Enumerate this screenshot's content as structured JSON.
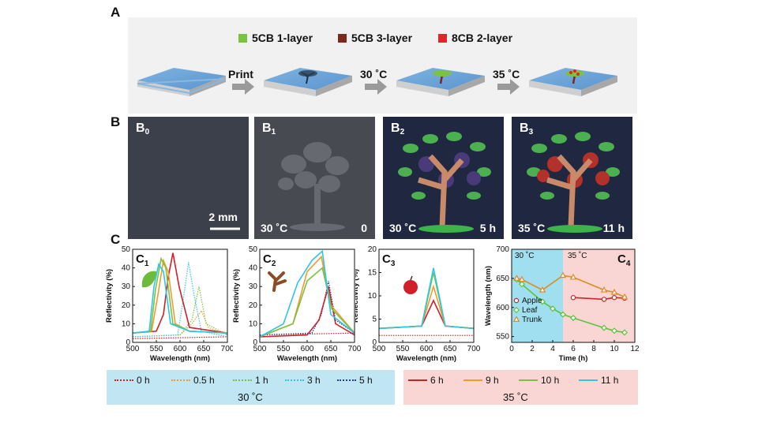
{
  "panels": {
    "A": "A",
    "B": "B",
    "C": "C"
  },
  "panelA": {
    "legend": [
      {
        "label": "5CB 1-layer",
        "color": "#7cc242"
      },
      {
        "label": "5CB 3-layer",
        "color": "#7a2a1c"
      },
      {
        "label": "8CB 2-layer",
        "color": "#e0262b"
      }
    ],
    "steps": [
      "Print",
      "30 ˚C",
      "35 ˚C"
    ]
  },
  "panelB": {
    "photos": [
      {
        "tag": "B",
        "sub": "0",
        "left_text": "",
        "right_text": "",
        "scale": "2 mm"
      },
      {
        "tag": "B",
        "sub": "1",
        "left_text": "30 ˚C",
        "right_text": "0",
        "scale": ""
      },
      {
        "tag": "B",
        "sub": "2",
        "left_text": "30 ˚C",
        "right_text": "5 h",
        "scale": ""
      },
      {
        "tag": "B",
        "sub": "3",
        "left_text": "35 ˚C",
        "right_text": "11 h",
        "scale": ""
      }
    ]
  },
  "legend": {
    "phase1": {
      "title": "30 ˚C",
      "items": [
        {
          "label": "0 h",
          "color": "#d0202a",
          "style": "dotted"
        },
        {
          "label": "0.5 h",
          "color": "#f29a2e",
          "style": "dotted"
        },
        {
          "label": "1 h",
          "color": "#7cc242",
          "style": "dotted"
        },
        {
          "label": "3 h",
          "color": "#2ec5e6",
          "style": "dotted"
        },
        {
          "label": "5 h",
          "color": "#233d8f",
          "style": "dotted"
        }
      ]
    },
    "phase2": {
      "title": "35 ˚C",
      "items": [
        {
          "label": "6 h",
          "color": "#d0202a",
          "style": "solid"
        },
        {
          "label": "9 h",
          "color": "#f29a2e",
          "style": "solid"
        },
        {
          "label": "10 h",
          "color": "#7cc242",
          "style": "solid"
        },
        {
          "label": "11 h",
          "color": "#2ec5e6",
          "style": "solid"
        }
      ]
    }
  },
  "chart_data": [
    {
      "panel": "C1",
      "type": "line",
      "xlabel": "Wavelength (nm)",
      "ylabel": "Reflectivity (%)",
      "xlim": [
        500,
        700
      ],
      "ylim": [
        0,
        50
      ],
      "xticks": [
        500,
        550,
        600,
        650,
        700
      ],
      "yticks": [
        0,
        10,
        20,
        30,
        40,
        50
      ],
      "icon": "leaf",
      "series": [
        {
          "name": "0 h",
          "style": "dotted",
          "color": "#d0202a",
          "x": [
            500,
            700
          ],
          "y": [
            2,
            3
          ]
        },
        {
          "name": "0.5 h",
          "style": "dotted",
          "color": "#f29a2e",
          "x": [
            500,
            600,
            625,
            645,
            660,
            700
          ],
          "y": [
            3,
            4,
            10,
            17,
            8,
            4
          ]
        },
        {
          "name": "1 h",
          "style": "dotted",
          "color": "#7cc242",
          "x": [
            500,
            600,
            625,
            640,
            655,
            700
          ],
          "y": [
            3,
            4,
            12,
            30,
            10,
            4
          ]
        },
        {
          "name": "3 h",
          "style": "dotted",
          "color": "#2ec5e6",
          "x": [
            500,
            595,
            605,
            618,
            630,
            645,
            700
          ],
          "y": [
            3,
            4,
            20,
            43,
            25,
            6,
            3
          ]
        },
        {
          "name": "6 h",
          "style": "solid",
          "color": "#d0202a",
          "x": [
            500,
            550,
            565,
            575,
            585,
            598,
            620,
            700
          ],
          "y": [
            5,
            6,
            15,
            35,
            48,
            30,
            8,
            5
          ]
        },
        {
          "name": "9 h",
          "style": "solid",
          "color": "#f29a2e",
          "x": [
            500,
            540,
            553,
            565,
            575,
            590,
            620,
            700
          ],
          "y": [
            5,
            6,
            25,
            44,
            38,
            10,
            6,
            5
          ]
        },
        {
          "name": "10 h",
          "style": "solid",
          "color": "#7cc242",
          "x": [
            500,
            538,
            548,
            560,
            570,
            585,
            620,
            700
          ],
          "y": [
            5,
            6,
            28,
            45,
            40,
            10,
            6,
            5
          ]
        },
        {
          "name": "11 h",
          "style": "solid",
          "color": "#2ec5e6",
          "x": [
            500,
            535,
            545,
            555,
            565,
            580,
            620,
            700
          ],
          "y": [
            5,
            6,
            30,
            42,
            38,
            10,
            6,
            5
          ]
        }
      ]
    },
    {
      "panel": "C2",
      "type": "line",
      "xlabel": "Wavelength (nm)",
      "ylabel": "Reflectivity (%)",
      "xlim": [
        500,
        700
      ],
      "ylim": [
        0,
        50
      ],
      "xticks": [
        500,
        550,
        600,
        650,
        700
      ],
      "yticks": [
        0,
        10,
        20,
        30,
        40,
        50
      ],
      "icon": "trunk",
      "series": [
        {
          "name": "0 h",
          "style": "dotted",
          "color": "#d0202a",
          "x": [
            500,
            700
          ],
          "y": [
            4,
            5
          ]
        },
        {
          "name": "5 h",
          "style": "dotted",
          "color": "#233d8f",
          "x": [
            500,
            610,
            630,
            645,
            660,
            700
          ],
          "y": [
            4,
            5,
            15,
            33,
            12,
            5
          ]
        },
        {
          "name": "6 h",
          "style": "solid",
          "color": "#d0202a",
          "x": [
            500,
            600,
            625,
            645,
            660,
            700
          ],
          "y": [
            3,
            4,
            12,
            30,
            10,
            4
          ]
        },
        {
          "name": "9 h",
          "style": "solid",
          "color": "#f29a2e",
          "x": [
            500,
            570,
            600,
            630,
            650,
            700
          ],
          "y": [
            3,
            10,
            38,
            46,
            20,
            5
          ]
        },
        {
          "name": "10 h",
          "style": "solid",
          "color": "#7cc242",
          "x": [
            500,
            570,
            600,
            632,
            652,
            700
          ],
          "y": [
            3,
            10,
            33,
            40,
            18,
            5
          ]
        },
        {
          "name": "11 h",
          "style": "solid",
          "color": "#2ec5e6",
          "x": [
            500,
            550,
            580,
            610,
            632,
            650,
            700
          ],
          "y": [
            3,
            10,
            32,
            44,
            49,
            15,
            5
          ]
        }
      ]
    },
    {
      "panel": "C3",
      "type": "line",
      "xlabel": "Wavelength (nm)",
      "ylabel": "Reflectivity (%)",
      "xlim": [
        500,
        700
      ],
      "ylim": [
        0,
        20
      ],
      "xticks": [
        500,
        550,
        600,
        650,
        700
      ],
      "yticks": [
        0,
        5,
        10,
        15,
        20
      ],
      "icon": "apple",
      "series": [
        {
          "name": "0 h",
          "style": "dotted",
          "color": "#d0202a",
          "x": [
            500,
            700
          ],
          "y": [
            1.5,
            1.5
          ]
        },
        {
          "name": "6 h",
          "style": "solid",
          "color": "#d0202a",
          "x": [
            500,
            590,
            615,
            640,
            700
          ],
          "y": [
            3,
            3.5,
            9,
            3.5,
            3
          ]
        },
        {
          "name": "9 h",
          "style": "solid",
          "color": "#f29a2e",
          "x": [
            500,
            590,
            615,
            640,
            700
          ],
          "y": [
            3,
            3.5,
            12,
            3.5,
            3
          ]
        },
        {
          "name": "10 h",
          "style": "solid",
          "color": "#7cc242",
          "x": [
            500,
            590,
            615,
            640,
            700
          ],
          "y": [
            3,
            3.5,
            15,
            3.5,
            3
          ]
        },
        {
          "name": "11 h",
          "style": "solid",
          "color": "#2ec5e6",
          "x": [
            500,
            590,
            615,
            640,
            700
          ],
          "y": [
            3,
            3.5,
            16,
            3.5,
            3
          ]
        }
      ]
    },
    {
      "panel": "C4",
      "type": "line",
      "xlabel": "Time (h)",
      "ylabel": "Wavelength (nm)",
      "xlim": [
        0,
        12
      ],
      "ylim": [
        540,
        700
      ],
      "xticks": [
        0,
        2,
        4,
        6,
        8,
        10,
        12
      ],
      "yticks": [
        550,
        600,
        650,
        700
      ],
      "region_labels": [
        "30 ˚C",
        "35 ˚C"
      ],
      "region_split": 5,
      "region_colors": [
        "#9fdff0",
        "#f9d6d3"
      ],
      "series": [
        {
          "name": "Apple",
          "marker": "circle",
          "color": "#c62828",
          "x": [
            6,
            9,
            10,
            11
          ],
          "y": [
            617,
            614,
            617,
            616
          ]
        },
        {
          "name": "Leaf",
          "marker": "diamond",
          "color": "#5ac33a",
          "x": [
            0.5,
            1,
            3,
            4,
            5,
            6,
            9,
            10,
            11
          ],
          "y": [
            648,
            640,
            610,
            598,
            588,
            582,
            565,
            560,
            557
          ]
        },
        {
          "name": "Trunk",
          "marker": "triangle",
          "color": "#e08a22",
          "x": [
            0.5,
            1,
            3,
            5,
            6,
            9,
            10,
            11
          ],
          "y": [
            650,
            648,
            630,
            655,
            652,
            630,
            626,
            618
          ]
        }
      ]
    }
  ]
}
